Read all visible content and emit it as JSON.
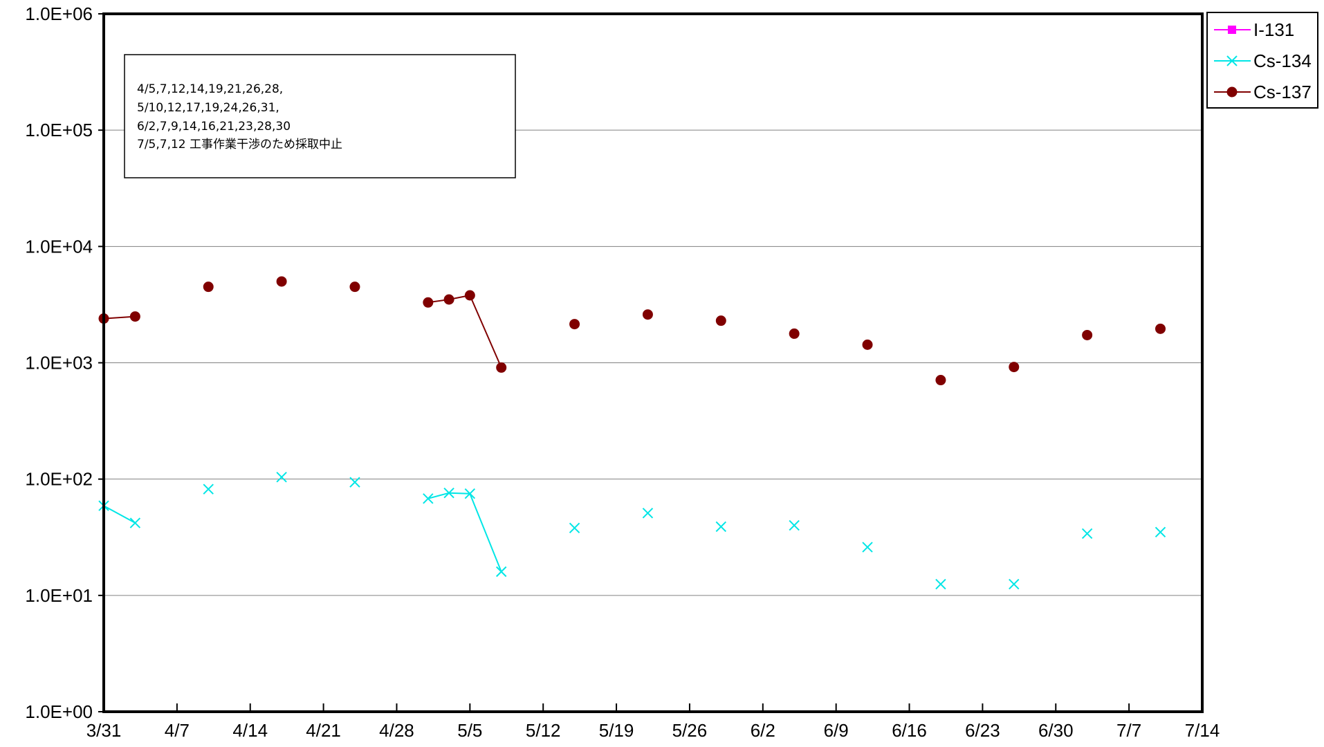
{
  "chart_data": {
    "type": "line",
    "title": "",
    "xlabel": "",
    "ylabel": "",
    "y_scale": "log",
    "ylim": [
      1,
      1000000
    ],
    "xlim": [
      "3/31",
      "7/14"
    ],
    "y_tick_labels": [
      "1.0E+00",
      "1.0E+01",
      "1.0E+02",
      "1.0E+03",
      "1.0E+04",
      "1.0E+05",
      "1.0E+06"
    ],
    "x_tick_labels": [
      "3/31",
      "4/7",
      "4/14",
      "4/21",
      "4/28",
      "5/5",
      "5/12",
      "5/19",
      "5/26",
      "6/2",
      "6/9",
      "6/16",
      "6/23",
      "6/30",
      "7/7",
      "7/14"
    ],
    "grid": "horizontal",
    "legend_position": "top-right",
    "note_lines": [
      "4/5,7,12,14,19,21,26,28,",
      "5/10,12,17,19,24,26,31,",
      "6/2,7,9,14,16,21,23,28,30",
      "7/5,7,12  工事作業干渉のため採取中止"
    ],
    "series": [
      {
        "name": "I-131",
        "color": "#ff00ff",
        "marker": "square",
        "points": []
      },
      {
        "name": "Cs-134",
        "color": "#00e6e6",
        "marker": "x",
        "points": [
          {
            "x": "3/31",
            "y": 59
          },
          {
            "x": "4/3",
            "y": 42
          },
          {
            "x": "4/10",
            "y": 82
          },
          {
            "x": "4/17",
            "y": 104
          },
          {
            "x": "4/24",
            "y": 94
          },
          {
            "x": "5/1",
            "y": 68
          },
          {
            "x": "5/3",
            "y": 76
          },
          {
            "x": "5/5",
            "y": 75
          },
          {
            "x": "5/8",
            "y": 16
          },
          {
            "x": "5/15",
            "y": 38
          },
          {
            "x": "5/22",
            "y": 51
          },
          {
            "x": "5/29",
            "y": 39
          },
          {
            "x": "6/5",
            "y": 40
          },
          {
            "x": "6/12",
            "y": 26
          },
          {
            "x": "6/19",
            "y": 12.5
          },
          {
            "x": "6/26",
            "y": 12.5
          },
          {
            "x": "7/3",
            "y": 34
          },
          {
            "x": "7/10",
            "y": 35
          }
        ],
        "segments": [
          [
            "3/31",
            "4/3"
          ],
          [
            "5/1",
            "5/3",
            "5/5",
            "5/8"
          ]
        ]
      },
      {
        "name": "Cs-137",
        "color": "#800000",
        "marker": "circle",
        "points": [
          {
            "x": "3/31",
            "y": 2400
          },
          {
            "x": "4/3",
            "y": 2500
          },
          {
            "x": "4/10",
            "y": 4500
          },
          {
            "x": "4/17",
            "y": 5000
          },
          {
            "x": "4/24",
            "y": 4500
          },
          {
            "x": "5/1",
            "y": 3300
          },
          {
            "x": "5/3",
            "y": 3500
          },
          {
            "x": "5/5",
            "y": 3800
          },
          {
            "x": "5/8",
            "y": 910
          },
          {
            "x": "5/15",
            "y": 2150
          },
          {
            "x": "5/22",
            "y": 2600
          },
          {
            "x": "5/29",
            "y": 2300
          },
          {
            "x": "6/5",
            "y": 1780
          },
          {
            "x": "6/12",
            "y": 1430
          },
          {
            "x": "6/19",
            "y": 710
          },
          {
            "x": "6/26",
            "y": 920
          },
          {
            "x": "7/3",
            "y": 1730
          },
          {
            "x": "7/10",
            "y": 1960
          }
        ],
        "segments": [
          [
            "3/31",
            "4/3"
          ],
          [
            "5/1",
            "5/3",
            "5/5",
            "5/8"
          ]
        ]
      }
    ]
  }
}
